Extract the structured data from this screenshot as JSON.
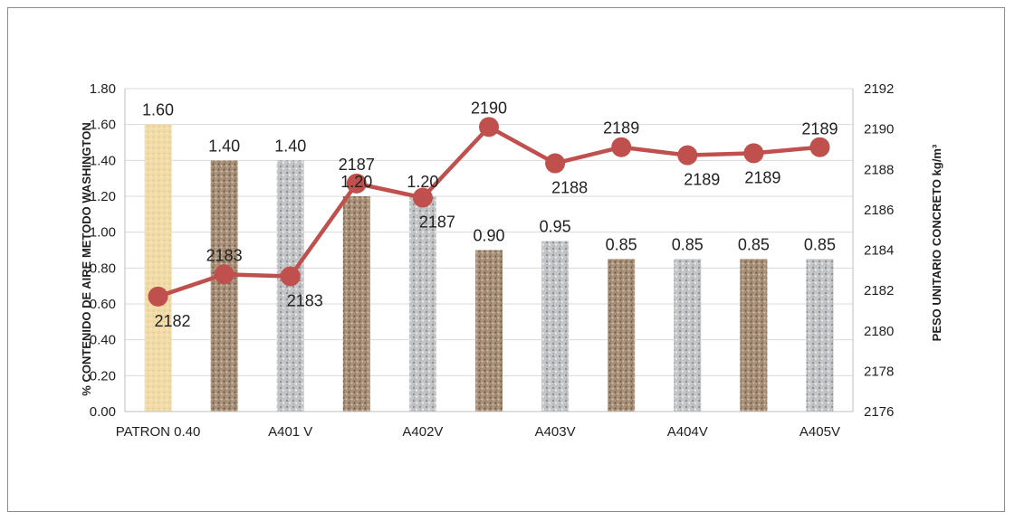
{
  "chart_data": {
    "type": "bar+line",
    "categories": [
      "PATRON 0.40",
      "",
      "A401 V",
      "",
      "A402V",
      "",
      "A403V",
      "",
      "A404V",
      "",
      "A405V"
    ],
    "bar_series": {
      "values": [
        1.6,
        1.4,
        1.4,
        1.2,
        1.2,
        0.9,
        0.95,
        0.85,
        0.85,
        0.85,
        0.85
      ],
      "labels": [
        "1.60",
        "1.40",
        "1.40",
        "1.20",
        "1.20",
        "0.90",
        "0.95",
        "0.85",
        "0.85",
        "0.85",
        "0.85"
      ],
      "textures": [
        "sand",
        "brown",
        "gray",
        "brown",
        "gray",
        "brown",
        "gray",
        "brown",
        "gray",
        "brown",
        "gray"
      ]
    },
    "line_series": {
      "values": [
        2181.7,
        2182.8,
        2182.7,
        2187.3,
        2186.6,
        2190.1,
        2188.3,
        2189.1,
        2188.7,
        2188.8,
        2189.1
      ],
      "labels": [
        "2182",
        "2183",
        "2183",
        "2187",
        "2187",
        "2190",
        "2188",
        "2189",
        "2189",
        "2189",
        "2189"
      ],
      "color": "#c0504d"
    },
    "y_left": {
      "label": "% CONTENIDO DE AIRE METODO WASHINGTON",
      "ylim": [
        0,
        1.8
      ],
      "ticks": [
        "0.00",
        "0.20",
        "0.40",
        "0.60",
        "0.80",
        "1.00",
        "1.20",
        "1.40",
        "1.60",
        "1.80"
      ]
    },
    "y_right": {
      "label": "PESO UNITARIO CONCRETO kg/m³",
      "ylim": [
        2176,
        2192
      ],
      "ticks": [
        "2176",
        "2178",
        "2180",
        "2182",
        "2184",
        "2186",
        "2188",
        "2190",
        "2192"
      ]
    },
    "grid": true,
    "legend": "none"
  }
}
